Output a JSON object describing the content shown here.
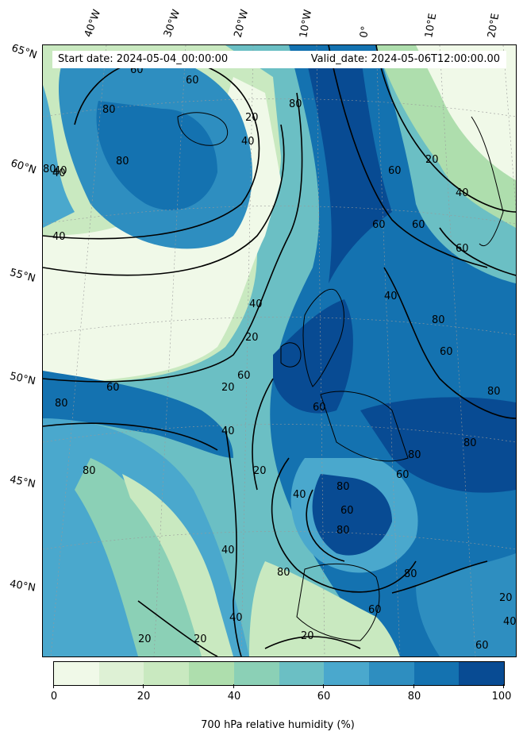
{
  "info": {
    "start_date": "Start date: 2024-05-04_00:00:00",
    "valid_date": "Valid_date: 2024-05-06T12:00:00.00"
  },
  "lon_labels": [
    "40°W",
    "30°W",
    "20°W",
    "10°W",
    "0°",
    "10°E",
    "20°E"
  ],
  "lat_labels": [
    "65°N",
    "60°N",
    "55°N",
    "50°N",
    "45°N",
    "40°N"
  ],
  "contour_labels": [
    "20",
    "40",
    "60",
    "80"
  ],
  "colorbar": {
    "title": "700 hPa relative humidity (%)",
    "ticks": [
      "0",
      "20",
      "40",
      "60",
      "80",
      "100"
    ],
    "colors": [
      "#f0f9e8",
      "#def1d5",
      "#c9e9c0",
      "#aedead",
      "#8bd0b6",
      "#6bbfc4",
      "#4aa8cd",
      "#2e8ec0",
      "#1472b0",
      "#084b93"
    ]
  }
}
